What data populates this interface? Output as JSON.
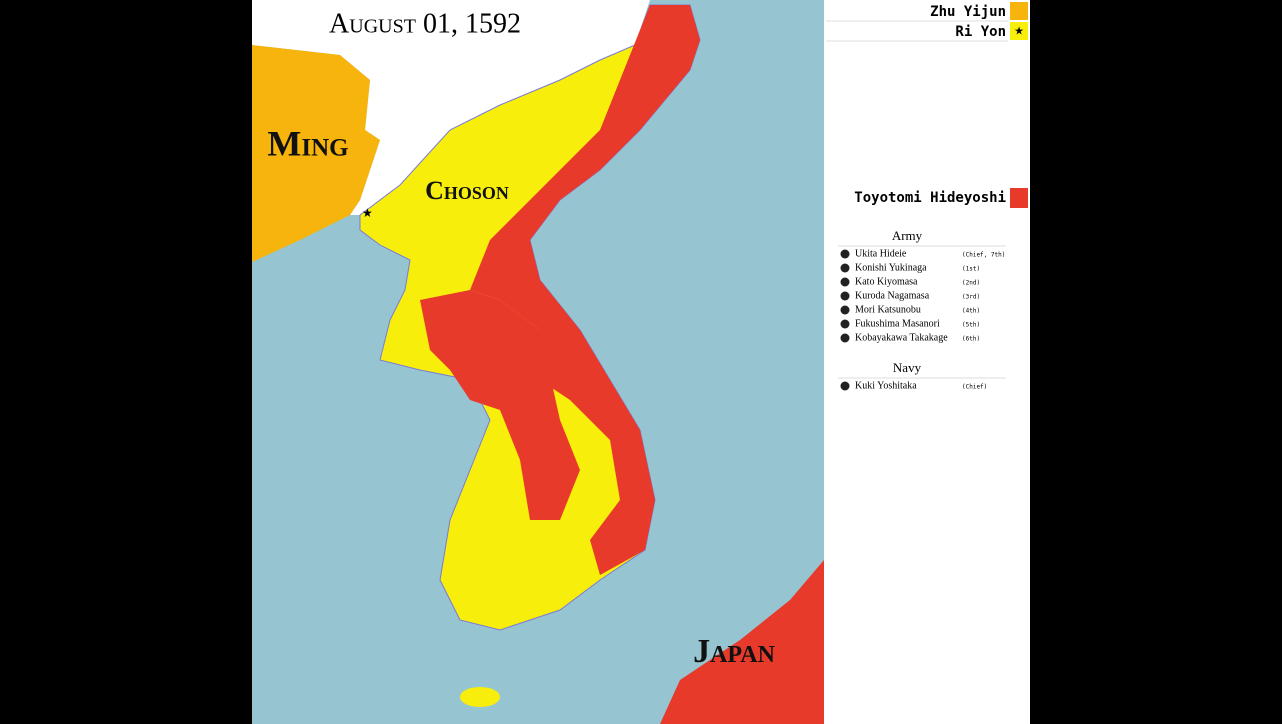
{
  "title": "August 01, 1592",
  "map_labels": [
    "Ming",
    "Choson",
    "Japan"
  ],
  "leaders": [
    {
      "name": "Zhu Yijun"
    },
    {
      "name": "Ri Yon"
    }
  ],
  "faction": "Toyotomi Hideyoshi",
  "army": {
    "title": "Army",
    "commanders": [
      {
        "name": "Ukita Hideie",
        "rank": "(Chief, 7th)"
      },
      {
        "name": "Konishi Yukinaga",
        "rank": "(1st)"
      },
      {
        "name": "Kato Kiyomasa",
        "rank": "(2nd)"
      },
      {
        "name": "Kuroda Nagamasa",
        "rank": "(3rd)"
      },
      {
        "name": "Mori Katsunobu",
        "rank": "(4th)"
      },
      {
        "name": "Fukushima Masanori",
        "rank": "(5th)"
      },
      {
        "name": "Kobayakawa Takakage",
        "rank": "(6th)"
      }
    ]
  },
  "navy": {
    "title": "Navy",
    "commanders": [
      {
        "name": "Kuki Yoshitaka",
        "rank": "(Chief)"
      }
    ]
  }
}
